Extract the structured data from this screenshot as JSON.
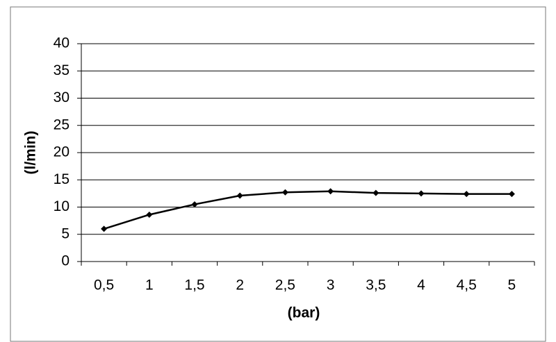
{
  "chart_data": {
    "type": "line",
    "x_label": "(bar)",
    "y_label": "(l/min)",
    "categories": [
      "0,5",
      "1",
      "1,5",
      "2",
      "2,5",
      "3",
      "3,5",
      "4",
      "4,5",
      "5"
    ],
    "values": [
      6.0,
      8.6,
      10.5,
      12.1,
      12.7,
      12.9,
      12.6,
      12.5,
      12.4,
      12.4
    ],
    "color": "#000000",
    "ylim": [
      0,
      40
    ],
    "yticks": [
      0,
      5,
      10,
      15,
      20,
      25,
      30,
      35,
      40
    ],
    "grid": true
  }
}
